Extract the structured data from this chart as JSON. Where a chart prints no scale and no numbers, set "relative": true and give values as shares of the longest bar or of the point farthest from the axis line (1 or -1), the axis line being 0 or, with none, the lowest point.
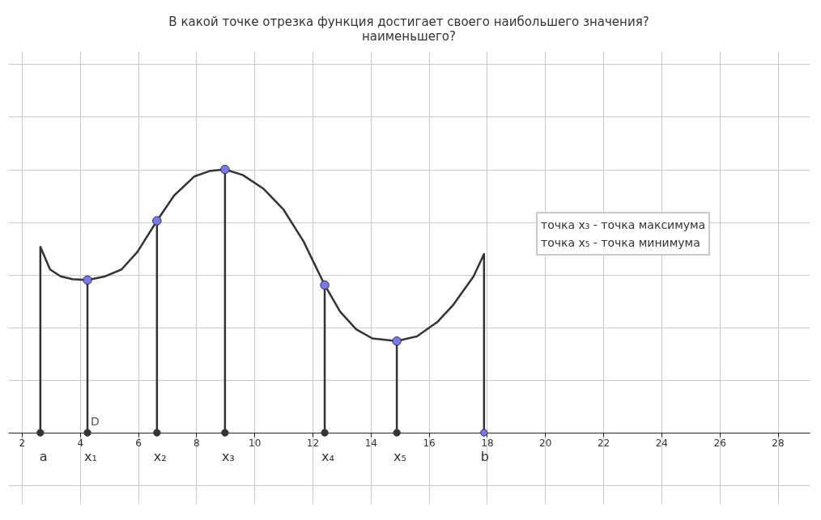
{
  "chart_data": {
    "type": "line",
    "title": "В какой точке отрезка функция достигает своего наибольшего значения?",
    "subtitle": "наименьшего?",
    "relative": true,
    "grid": true,
    "xlim": [
      1.53,
      29.1
    ],
    "xticks": [
      2,
      4,
      6,
      8,
      10,
      12,
      14,
      16,
      18,
      20,
      22,
      24,
      26,
      28
    ],
    "series": [
      {
        "type": "line",
        "color": "#333333",
        "line_style": "solid",
        "x": [
          2.64,
          2.64,
          2.975,
          3.34,
          3.75,
          4.26,
          4.87,
          5.43,
          5.98,
          6.65,
          7.24,
          7.93,
          8.49,
          8.99,
          9.6,
          10.3,
          11.0,
          11.69,
          12.42,
          12.95,
          13.5,
          14.06,
          14.9,
          15.59,
          16.29,
          16.85,
          17.54,
          17.9,
          17.9
        ],
        "values": [
          0,
          0.706,
          0.62,
          0.594,
          0.583,
          0.58,
          0.594,
          0.62,
          0.687,
          0.805,
          0.901,
          0.973,
          0.995,
          1,
          0.979,
          0.928,
          0.848,
          0.727,
          0.561,
          0.46,
          0.393,
          0.358,
          0.348,
          0.366,
          0.42,
          0.487,
          0.594,
          0.679,
          0
        ]
      },
      {
        "type": "lollipop",
        "color": "#7878f2",
        "marker": "circle",
        "x": [
          4.26,
          6.65,
          8.99,
          12.42,
          14.9
        ],
        "values": [
          0.58,
          0.805,
          1,
          0.561,
          0.348
        ]
      },
      {
        "type": "scatter",
        "marker": "circle",
        "x": [
          2.64,
          4.26,
          6.65,
          8.99,
          12.42,
          14.9,
          17.9
        ],
        "values": [
          0,
          0,
          0,
          0,
          0,
          0,
          0
        ],
        "colors": [
          "#333333",
          "#333333",
          "#333333",
          "#333333",
          "#333333",
          "#333333",
          "#7878f2"
        ]
      }
    ],
    "annotations": [
      {
        "text": "a",
        "x": 2.72,
        "y": 0
      },
      {
        "text": "x₁",
        "x": 4.26,
        "y": 0
      },
      {
        "text": "D",
        "x": 4.26,
        "y": 0
      },
      {
        "text": "x₂",
        "x": 6.65,
        "y": 0
      },
      {
        "text": "x₃",
        "x": 8.99,
        "y": 0
      },
      {
        "text": "x₄",
        "x": 12.42,
        "y": 0
      },
      {
        "text": "x₅",
        "x": 14.9,
        "y": 0
      },
      {
        "text": "b",
        "x": 17.9,
        "y": 0
      },
      "точка x₃ - точка максимума",
      "точка x₅ - точка минимума"
    ]
  }
}
